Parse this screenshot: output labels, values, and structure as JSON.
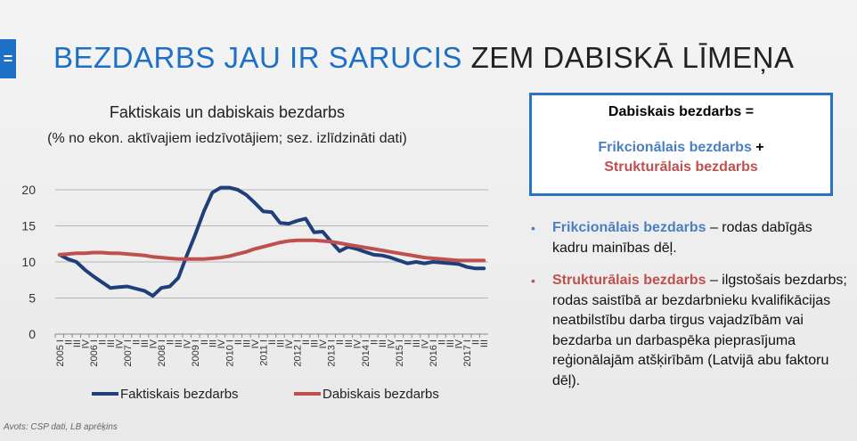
{
  "header": {
    "badge": "=",
    "title_part1": "BEZDARBS JAU IR SARUCIS",
    "title_part2": " ZEM DABISKĀ LĪMEŅA"
  },
  "chart_data": {
    "type": "line",
    "title": "Faktiskais un dabiskais bezdarbs",
    "subtitle": "(% no ekon. aktīvajiem iedzīvotājiem; sez. izlīdzināti dati)",
    "ylim": [
      0,
      20
    ],
    "yticks": [
      "0",
      "5",
      "10",
      "15",
      "20"
    ],
    "grid": true,
    "legend_position": "bottom",
    "x_labels": [
      "2005 I",
      "II",
      "III",
      "IV",
      "2006 I",
      "II",
      "III",
      "IV",
      "2007 I",
      "II",
      "III",
      "IV",
      "2008 I",
      "II",
      "III",
      "IV",
      "2009 I",
      "II",
      "III",
      "IV",
      "2010 I",
      "II",
      "III",
      "IV",
      "2011 I",
      "II",
      "III",
      "IV",
      "2012 I",
      "II",
      "III",
      "IV",
      "2013 I",
      "II",
      "III",
      "IV",
      "2014 I",
      "II",
      "III",
      "IV",
      "2015 I",
      "II",
      "III",
      "IV",
      "2016 I",
      "II",
      "III",
      "IV",
      "2017 I",
      "II",
      "III"
    ],
    "series": [
      {
        "name": "Faktiskais bezdarbs",
        "color": "#1f3f7a",
        "values": [
          11.0,
          10.4,
          10.0,
          8.9,
          8.0,
          7.2,
          6.4,
          6.5,
          6.6,
          6.3,
          6.0,
          5.3,
          6.4,
          6.6,
          7.8,
          10.9,
          13.8,
          17.0,
          19.6,
          20.3,
          20.3,
          20.0,
          19.3,
          18.2,
          17.0,
          16.9,
          15.4,
          15.3,
          15.7,
          16.0,
          14.1,
          14.2,
          12.8,
          11.5,
          12.1,
          11.8,
          11.4,
          11.0,
          10.9,
          10.6,
          10.2,
          9.8,
          10.0,
          9.8,
          10.0,
          9.9,
          9.8,
          9.7,
          9.3,
          9.1,
          9.1
        ]
      },
      {
        "name": "Dabiskais bezdarbs",
        "color": "#c0504d",
        "values": [
          11.0,
          11.1,
          11.2,
          11.2,
          11.3,
          11.3,
          11.2,
          11.2,
          11.1,
          11.0,
          10.9,
          10.7,
          10.6,
          10.5,
          10.4,
          10.4,
          10.4,
          10.4,
          10.5,
          10.6,
          10.8,
          11.1,
          11.4,
          11.8,
          12.1,
          12.4,
          12.7,
          12.9,
          13.0,
          13.0,
          13.0,
          12.9,
          12.8,
          12.6,
          12.4,
          12.2,
          12.0,
          11.8,
          11.6,
          11.4,
          11.2,
          11.0,
          10.8,
          10.6,
          10.5,
          10.4,
          10.3,
          10.2,
          10.2,
          10.2,
          10.2
        ]
      }
    ]
  },
  "box": {
    "heading": "Dabiskais bezdarbs =",
    "line1": "Frikcionālais bezdarbs",
    "plus": " +",
    "line2": "Strukturālais bezdarbs"
  },
  "bullets": [
    {
      "dot": "•",
      "term": "Frikcionālais bezdarbs",
      "text": " – rodas dabīgās kadru mainības dēļ."
    },
    {
      "dot": "•",
      "term": "Strukturālais bezdarbs",
      "text": " – ilgstošais bezdarbs; rodas saistībā ar bezdarbnieku kvalifikācijas neatbilstību darba tirgus vajadzībām vai bezdarba un darbaspēka pieprasījuma reģionālajām atšķirībām (Latvijā abu faktoru dēļ)."
    }
  ],
  "source": "Avots: CSP dati, LB aprēķins"
}
